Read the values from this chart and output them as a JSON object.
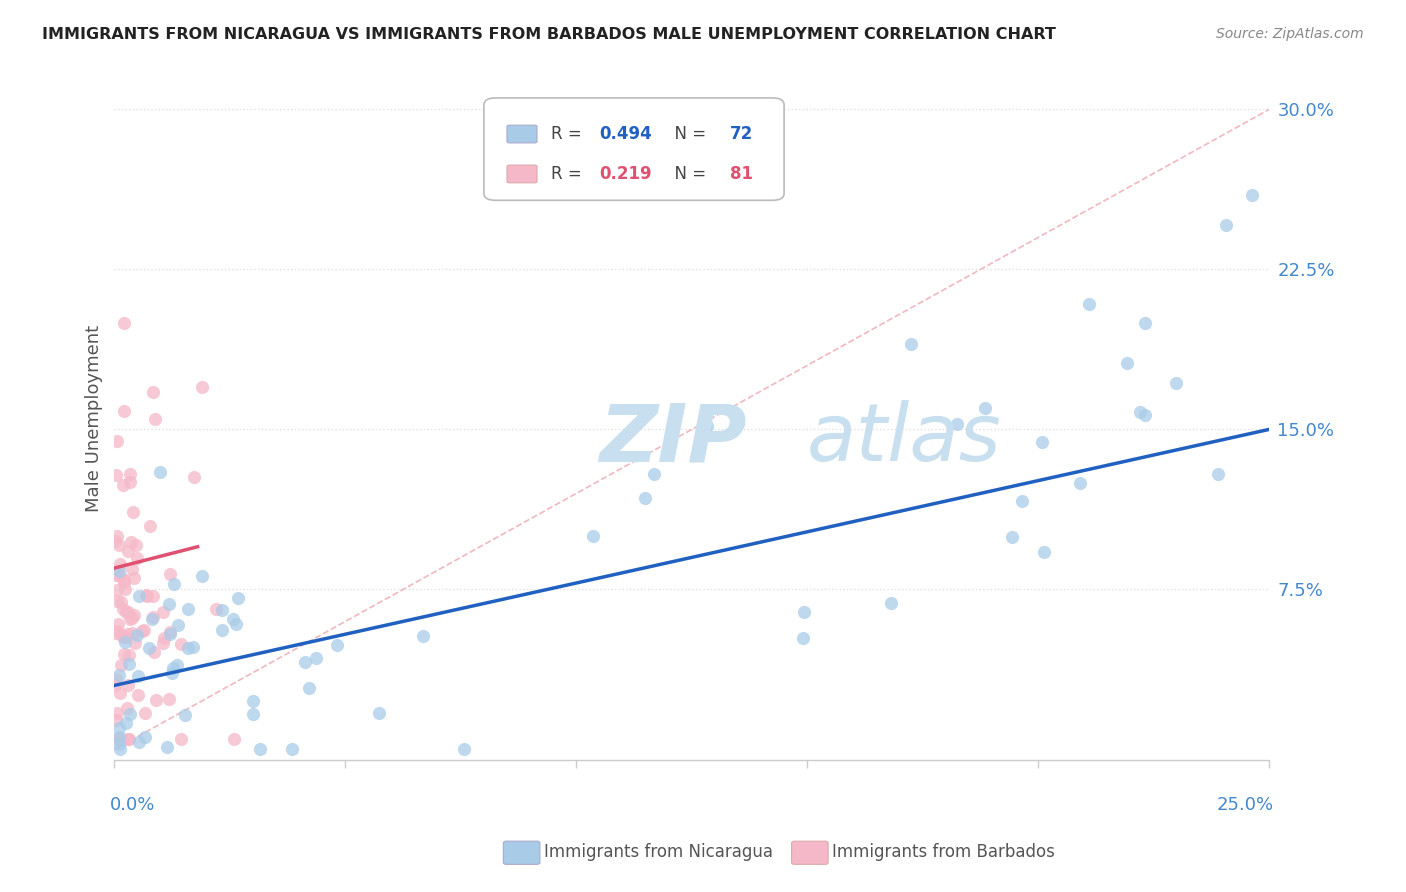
{
  "title": "IMMIGRANTS FROM NICARAGUA VS IMMIGRANTS FROM BARBADOS MALE UNEMPLOYMENT CORRELATION CHART",
  "source": "Source: ZipAtlas.com",
  "ylabel": "Male Unemployment",
  "xlim": [
    0.0,
    0.25
  ],
  "ylim": [
    -0.005,
    0.315
  ],
  "R_nicaragua": 0.494,
  "N_nicaragua": 72,
  "R_barbados": 0.219,
  "N_barbados": 81,
  "color_nicaragua": "#a8cce8",
  "color_barbados": "#f5b8c8",
  "line_color_nicaragua": "#2060c0",
  "line_color_barbados": "#e05070",
  "diag_color": "#f0b0b8",
  "watermark_zip_color": "#c8dff0",
  "watermark_atlas_color": "#c8dff0",
  "background_color": "#ffffff",
  "grid_color": "#e0e0e0",
  "tick_color": "#4488cc",
  "ytick_vals": [
    0.075,
    0.15,
    0.225,
    0.3
  ],
  "ytick_labels": [
    "7.5%",
    "15.0%",
    "22.5%",
    "30.0%"
  ],
  "nic_line_x0": 0.0,
  "nic_line_y0": 0.03,
  "nic_line_x1": 0.25,
  "nic_line_y1": 0.15,
  "bar_line_x0": 0.0,
  "bar_line_y0": 0.085,
  "bar_line_x1": 0.018,
  "bar_line_y1": 0.095
}
